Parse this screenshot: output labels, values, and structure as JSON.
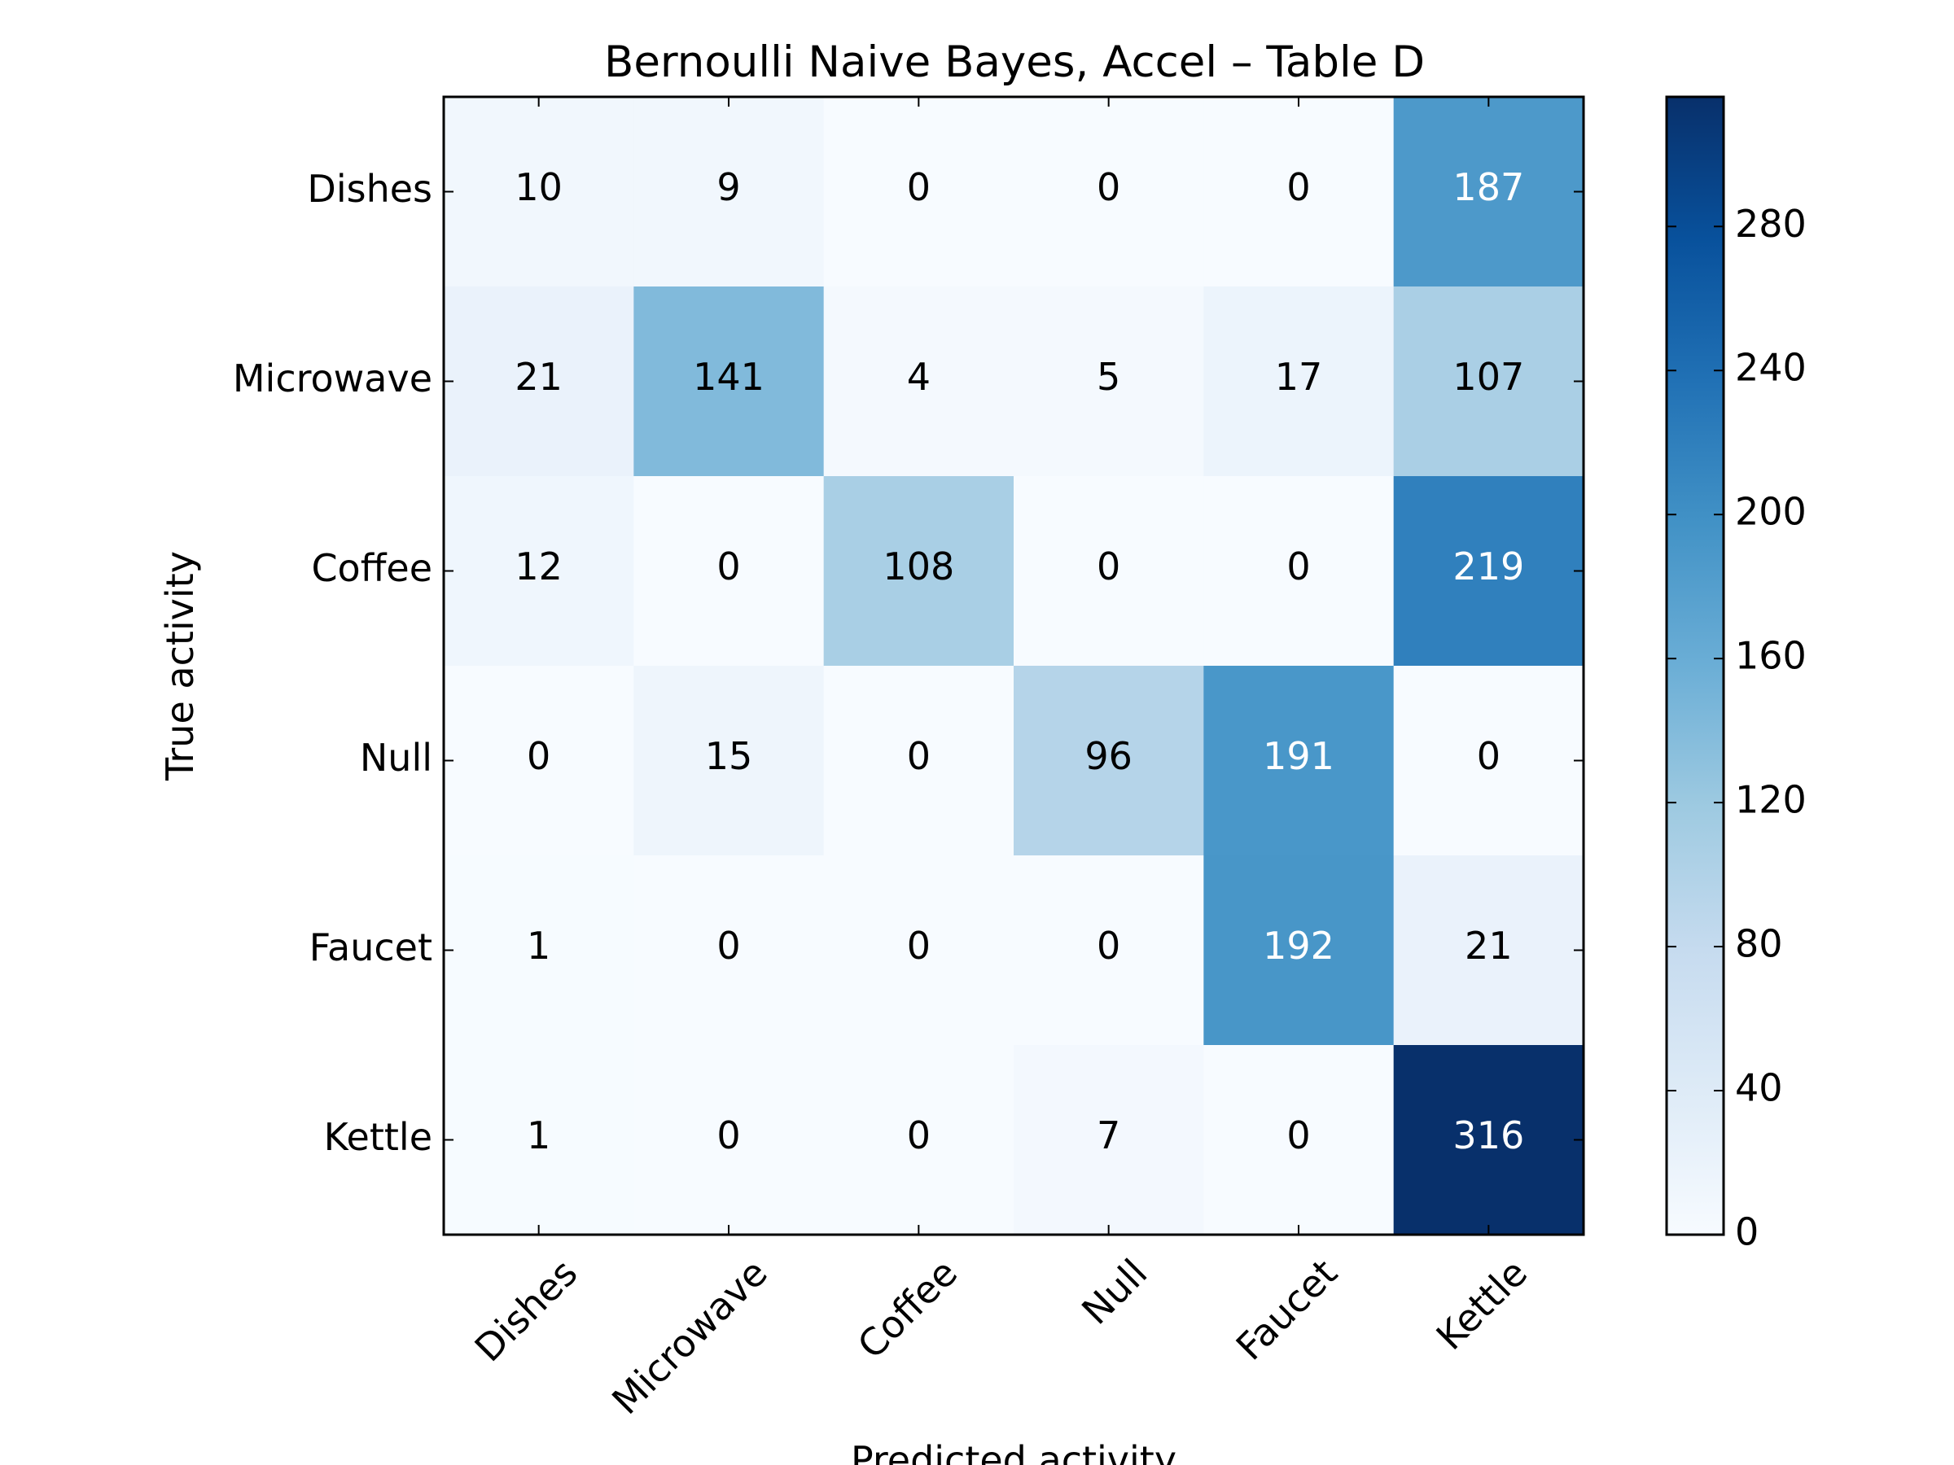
{
  "chart_data": {
    "type": "heatmap",
    "title": "Bernoulli Naive Bayes, Accel – Table D",
    "xlabel": "Predicted activity",
    "ylabel": "True activity",
    "x_categories": [
      "Dishes",
      "Microwave",
      "Coffee",
      "Null",
      "Faucet",
      "Kettle"
    ],
    "y_categories": [
      "Dishes",
      "Microwave",
      "Coffee",
      "Null",
      "Faucet",
      "Kettle"
    ],
    "values": [
      [
        10,
        9,
        0,
        0,
        0,
        187
      ],
      [
        21,
        141,
        4,
        5,
        17,
        107
      ],
      [
        12,
        0,
        108,
        0,
        0,
        219
      ],
      [
        0,
        15,
        0,
        96,
        191,
        0
      ],
      [
        1,
        0,
        0,
        0,
        192,
        21
      ],
      [
        1,
        0,
        0,
        7,
        0,
        316
      ]
    ],
    "colormap": "Blues",
    "colorbar": {
      "min": 0,
      "max": 316,
      "ticks": [
        0,
        40,
        80,
        120,
        160,
        200,
        240,
        280
      ]
    },
    "text_color_light": "#ffffff",
    "text_color_dark": "#000000",
    "grid": false
  }
}
